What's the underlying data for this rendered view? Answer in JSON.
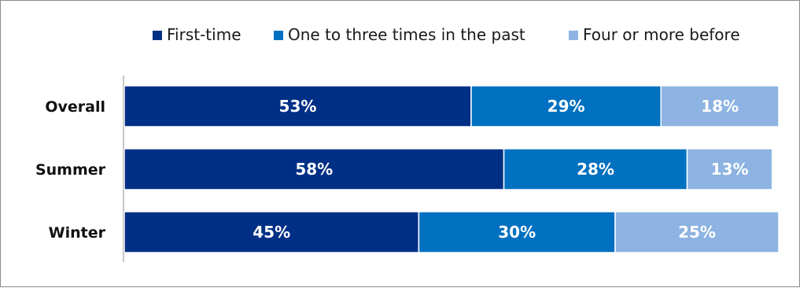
{
  "chart_data": {
    "type": "bar",
    "orientation": "horizontal",
    "stacked": true,
    "percent_stacked": true,
    "categories": [
      "Overall",
      "Summer",
      "Winter"
    ],
    "series": [
      {
        "name": "First-time",
        "values": [
          53,
          58,
          45
        ],
        "labels": [
          "53%",
          "58%",
          "45%"
        ],
        "color": "#002f86"
      },
      {
        "name": "One to three times in the past",
        "values": [
          29,
          28,
          30
        ],
        "labels": [
          "29%",
          "28%",
          "30%"
        ],
        "color": "#0070c0"
      },
      {
        "name": "Four or more before",
        "values": [
          18,
          13,
          25
        ],
        "labels": [
          "18%",
          "13%",
          "25%"
        ],
        "color": "#8db3e2"
      }
    ],
    "xlim": [
      0,
      100
    ],
    "title": "",
    "xlabel": "",
    "ylabel": "",
    "legend_position": "top-right",
    "grid": false
  }
}
